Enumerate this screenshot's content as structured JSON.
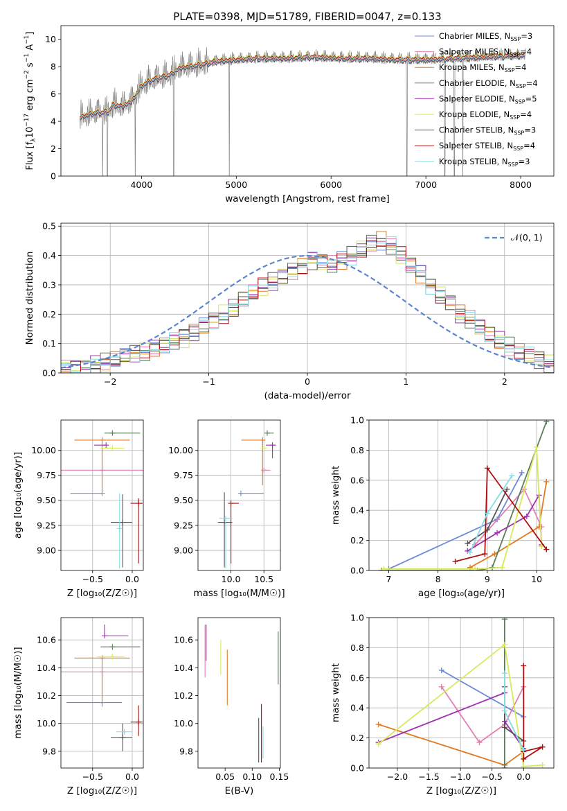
{
  "figure_title": "PLATE=0398, MJD=51789, FIBERID=0047, z=0.133",
  "colors": {
    "chabrier_miles": "#6a89d9",
    "salpeter_miles": "#e47fb4",
    "kroupa_miles": "#e07b25",
    "chabrier_elodie": "#5a7d5a",
    "salpeter_elodie": "#a033b0",
    "kroupa_elodie": "#d8e85a",
    "chabrier_stelib": "#555555",
    "salpeter_stelib": "#b00d0d",
    "kroupa_stelib": "#86dbe6",
    "data_spectrum": "#808080",
    "normal_curve": "#5b86cc"
  },
  "chart_data": [
    {
      "id": "spectrum",
      "type": "line",
      "xlabel": "wavelength [Angstrom, rest frame]",
      "ylabel_parts": [
        "Flux [f",
        "λ",
        "10",
        "−17",
        " erg cm",
        "−2",
        " s",
        "−1",
        " A",
        "−1",
        "]"
      ],
      "xlim": [
        3150,
        8350
      ],
      "ylim": [
        0,
        11
      ],
      "xticks": [
        4000,
        5000,
        6000,
        7000,
        8000
      ],
      "yticks": [
        0,
        2,
        4,
        6,
        8,
        10
      ],
      "grid": false,
      "legend_position": "right",
      "legend": [
        {
          "label": "Chabrier MILES, N",
          "sub": "SSP",
          "val": "=3",
          "color_key": "chabrier_miles"
        },
        {
          "label": "Salpeter MILES, N",
          "sub": "SSP",
          "val": "=4",
          "color_key": "salpeter_miles"
        },
        {
          "label": "Kroupa MILES, N",
          "sub": "SSP",
          "val": "=4",
          "color_key": "kroupa_miles"
        },
        {
          "label": "Chabrier ELODIE, N",
          "sub": "SSP",
          "val": "=4",
          "color_key": "chabrier_elodie"
        },
        {
          "label": "Salpeter ELODIE, N",
          "sub": "SSP",
          "val": "=5",
          "color_key": "salpeter_elodie"
        },
        {
          "label": "Kroupa ELODIE, N",
          "sub": "SSP",
          "val": "=4",
          "color_key": "kroupa_elodie"
        },
        {
          "label": "Chabrier STELIB, N",
          "sub": "SSP",
          "val": "=3",
          "color_key": "chabrier_stelib"
        },
        {
          "label": "Salpeter STELIB, N",
          "sub": "SSP",
          "val": "=4",
          "color_key": "salpeter_stelib"
        },
        {
          "label": "Kroupa STELIB, N",
          "sub": "SSP",
          "val": "=3",
          "color_key": "kroupa_stelib"
        }
      ],
      "continuum_x": [
        3350,
        3500,
        3650,
        3700,
        3800,
        3900,
        4000,
        4100,
        4200,
        4300,
        4400,
        4600,
        4800,
        5000,
        5200,
        5500,
        5800,
        6100,
        6400,
        6700,
        7000,
        7300,
        7600,
        7900,
        8050
      ],
      "continuum_y": [
        4.3,
        4.6,
        4.7,
        5.2,
        5.1,
        5.5,
        6.6,
        7.0,
        7.2,
        7.4,
        7.9,
        8.1,
        8.4,
        8.5,
        8.6,
        8.6,
        8.7,
        8.6,
        8.6,
        8.5,
        8.5,
        8.6,
        8.7,
        8.8,
        8.8
      ],
      "data_dips_x": [
        3590,
        3640,
        3935,
        4340,
        4925,
        6800,
        7200,
        7300,
        7390
      ],
      "model_offsets": [
        0.0,
        0.05,
        -0.05,
        0.1,
        -0.1,
        0.15,
        -0.12,
        0.08,
        0.0
      ]
    },
    {
      "id": "residuals",
      "type": "line",
      "xlabel": "(data-model)/error",
      "ylabel": "Normed distribution",
      "xlim": [
        -2.5,
        2.5
      ],
      "ylim": [
        0,
        0.51
      ],
      "xticks": [
        -2,
        -1,
        0,
        1,
        2
      ],
      "yticks": [
        0.0,
        0.1,
        0.2,
        0.3,
        0.4,
        0.5
      ],
      "grid": true,
      "legend_position": "top-right",
      "legend_label": "𝒩(0, 1)",
      "bin_width": 0.1,
      "bin_start": -2.5,
      "base_hist": [
        0.015,
        0.018,
        0.022,
        0.028,
        0.035,
        0.045,
        0.055,
        0.062,
        0.072,
        0.085,
        0.098,
        0.11,
        0.12,
        0.14,
        0.16,
        0.18,
        0.2,
        0.22,
        0.25,
        0.27,
        0.29,
        0.31,
        0.33,
        0.35,
        0.37,
        0.385,
        0.38,
        0.37,
        0.38,
        0.4,
        0.42,
        0.44,
        0.45,
        0.43,
        0.4,
        0.37,
        0.34,
        0.3,
        0.27,
        0.24,
        0.2,
        0.18,
        0.15,
        0.13,
        0.11,
        0.09,
        0.075,
        0.06,
        0.045,
        0.035
      ]
    },
    {
      "id": "age_vs_Z",
      "type": "scatter",
      "xlabel": "Z [log₁₀(Z/Z☉)]",
      "ylabel": "age  [log₁₀(age/yr)]",
      "xlim": [
        -0.9,
        0.14
      ],
      "ylim": [
        8.8,
        10.3
      ],
      "xticks": [
        -0.5,
        0.0
      ],
      "yticks": [
        9.0,
        9.25,
        9.5,
        9.75,
        10.0
      ],
      "grid": true,
      "points": [
        {
          "x": -0.38,
          "xerr": [
            0.4,
            0.0
          ],
          "y": 9.57,
          "yerr": [
            0.0,
            0.0
          ],
          "color_key": "chabrier_miles"
        },
        {
          "x": -0.38,
          "xerr": [
            0.52,
            0.52
          ],
          "y": 9.8,
          "yerr": [
            0.25,
            0.28
          ],
          "color_key": "salpeter_miles"
        },
        {
          "x": -0.38,
          "xerr": [
            0.35,
            0.35
          ],
          "y": 10.1,
          "yerr": [
            0.53,
            0.0
          ],
          "color_key": "kroupa_miles"
        },
        {
          "x": -0.25,
          "xerr": [
            0.1,
            0.35
          ],
          "y": 10.17,
          "yerr": [
            0.0,
            0.0
          ],
          "color_key": "chabrier_elodie"
        },
        {
          "x": -0.33,
          "xerr": [
            0.15,
            0.0
          ],
          "y": 10.05,
          "yerr": [
            0.0,
            0.0
          ],
          "color_key": "salpeter_elodie"
        },
        {
          "x": -0.25,
          "xerr": [
            0.15,
            0.15
          ],
          "y": 10.02,
          "yerr": [
            0.0,
            0.0
          ],
          "color_key": "kroupa_elodie"
        },
        {
          "x": -0.12,
          "xerr": [
            0.15,
            0.12
          ],
          "y": 9.28,
          "yerr": [
            0.45,
            0.28
          ],
          "color_key": "chabrier_stelib"
        },
        {
          "x": 0.08,
          "xerr": [
            0.1,
            0.05
          ],
          "y": 9.47,
          "yerr": [
            0.6,
            0.05
          ],
          "color_key": "salpeter_stelib"
        },
        {
          "x": -0.16,
          "xerr": [
            0.0,
            0.0
          ],
          "y": 9.22,
          "yerr": [
            0.4,
            0.35
          ],
          "color_key": "kroupa_stelib"
        }
      ]
    },
    {
      "id": "age_vs_mass",
      "type": "scatter",
      "xlabel": "mass [log₁₀(M/M☉)]",
      "ylabel": "",
      "xlim": [
        9.5,
        10.75
      ],
      "ylim": [
        8.8,
        10.3
      ],
      "xticks": [
        10.0,
        10.5
      ],
      "yticks": [
        9.0,
        9.25,
        9.5,
        9.75,
        10.0
      ],
      "grid": true,
      "points": [
        {
          "x": 10.15,
          "xerr": [
            0.0,
            0.35
          ],
          "y": 9.57,
          "yerr": [
            0.0,
            0.0
          ],
          "color_key": "chabrier_miles"
        },
        {
          "x": 10.5,
          "xerr": [
            0.0,
            0.1
          ],
          "y": 9.8,
          "yerr": [
            0.0,
            0.0
          ],
          "color_key": "salpeter_miles"
        },
        {
          "x": 10.48,
          "xerr": [
            0.32,
            0.0
          ],
          "y": 10.1,
          "yerr": [
            0.45,
            0.0
          ],
          "color_key": "kroupa_miles"
        },
        {
          "x": 10.55,
          "xerr": [
            0.0,
            0.1
          ],
          "y": 10.17,
          "yerr": [
            0.0,
            0.0
          ],
          "color_key": "chabrier_elodie"
        },
        {
          "x": 10.63,
          "xerr": [
            0.1,
            0.05
          ],
          "y": 10.05,
          "yerr": [
            0.13,
            0.0
          ],
          "color_key": "salpeter_elodie"
        },
        {
          "x": 10.5,
          "xerr": [
            0.0,
            0.0
          ],
          "y": 10.02,
          "yerr": [
            0.0,
            0.0
          ],
          "color_key": "kroupa_elodie"
        },
        {
          "x": 9.9,
          "xerr": [
            0.1,
            0.12
          ],
          "y": 9.28,
          "yerr": [
            0.45,
            0.3
          ],
          "color_key": "chabrier_stelib"
        },
        {
          "x": 10.0,
          "xerr": [
            0.0,
            0.12
          ],
          "y": 9.47,
          "yerr": [
            0.6,
            0.0
          ],
          "color_key": "salpeter_stelib"
        },
        {
          "x": 9.92,
          "xerr": [
            0.1,
            0.1
          ],
          "y": 9.32,
          "yerr": [
            0.5,
            0.0
          ],
          "color_key": "kroupa_stelib"
        }
      ]
    },
    {
      "id": "mass_weight_vs_age",
      "type": "line",
      "xlabel": "age  [log₁₀(age/yr)]",
      "ylabel": "mass weight",
      "xlim": [
        6.6,
        10.35
      ],
      "ylim": [
        0,
        1.0
      ],
      "xticks": [
        7,
        8,
        9,
        10
      ],
      "yticks": [
        0.0,
        0.2,
        0.4,
        0.6,
        0.8,
        1.0
      ],
      "grid": true,
      "series": [
        {
          "color_key": "chabrier_miles",
          "x": [
            7.0,
            9.2,
            9.7
          ],
          "y": [
            0.01,
            0.34,
            0.65
          ]
        },
        {
          "color_key": "salpeter_miles",
          "x": [
            8.75,
            9.75,
            10.1
          ],
          "y": [
            0.17,
            0.54,
            0.29
          ]
        },
        {
          "color_key": "kroupa_miles",
          "x": [
            8.65,
            9.15,
            10.05,
            10.2
          ],
          "y": [
            0.02,
            0.11,
            0.29,
            0.59
          ]
        },
        {
          "color_key": "chabrier_elodie",
          "x": [
            6.85,
            8.8,
            9.1,
            10.2
          ],
          "y": [
            0.0,
            0.0,
            0.02,
            0.99
          ]
        },
        {
          "color_key": "salpeter_elodie",
          "x": [
            8.6,
            9.2,
            9.8,
            10.05,
            10.1
          ],
          "y": [
            0.13,
            0.25,
            0.36,
            0.5,
            0.17
          ]
        },
        {
          "color_key": "kroupa_elodie",
          "x": [
            6.9,
            8.75,
            9.3,
            10.0,
            10.1
          ],
          "y": [
            0.01,
            0.01,
            0.02,
            0.82,
            0.16
          ]
        },
        {
          "color_key": "chabrier_stelib",
          "x": [
            8.6,
            9.0,
            9.4
          ],
          "y": [
            0.18,
            0.27,
            0.54
          ]
        },
        {
          "color_key": "salpeter_stelib",
          "x": [
            8.35,
            8.95,
            9.0,
            10.2
          ],
          "y": [
            0.06,
            0.11,
            0.68,
            0.14
          ]
        },
        {
          "color_key": "kroupa_stelib",
          "x": [
            8.65,
            9.0,
            9.5
          ],
          "y": [
            0.12,
            0.38,
            0.63
          ]
        }
      ]
    },
    {
      "id": "mass_vs_Z",
      "type": "scatter",
      "xlabel": "Z [log₁₀(Z/Z☉)]",
      "ylabel": "mass [log₁₀(M/M☉)]",
      "xlim": [
        -0.9,
        0.14
      ],
      "ylim": [
        9.68,
        10.76
      ],
      "xticks": [
        -0.5,
        0.0
      ],
      "yticks": [
        9.8,
        10.0,
        10.2,
        10.4,
        10.6
      ],
      "grid": true,
      "points": [
        {
          "x": -0.38,
          "xerr": [
            0.45,
            0.25
          ],
          "y": 10.15,
          "yerr": [
            0.0,
            0.0
          ],
          "color_key": "chabrier_miles"
        },
        {
          "x": -0.38,
          "xerr": [
            0.52,
            0.52
          ],
          "y": 10.37,
          "yerr": [
            0.23,
            0.0
          ],
          "color_key": "salpeter_miles"
        },
        {
          "x": -0.38,
          "xerr": [
            0.35,
            0.35
          ],
          "y": 10.47,
          "yerr": [
            0.35,
            0.0
          ],
          "color_key": "kroupa_miles"
        },
        {
          "x": -0.25,
          "xerr": [
            0.15,
            0.35
          ],
          "y": 10.55,
          "yerr": [
            0.0,
            0.0
          ],
          "color_key": "chabrier_elodie"
        },
        {
          "x": -0.35,
          "xerr": [
            0.0,
            0.3
          ],
          "y": 10.63,
          "yerr": [
            0.0,
            0.08
          ],
          "color_key": "salpeter_elodie"
        },
        {
          "x": -0.25,
          "xerr": [
            0.2,
            0.15
          ],
          "y": 10.48,
          "yerr": [
            0.0,
            0.0
          ],
          "color_key": "kroupa_elodie"
        },
        {
          "x": -0.12,
          "xerr": [
            0.15,
            0.12
          ],
          "y": 9.9,
          "yerr": [
            0.1,
            0.1
          ],
          "color_key": "chabrier_stelib"
        },
        {
          "x": 0.08,
          "xerr": [
            0.1,
            0.05
          ],
          "y": 10.01,
          "yerr": [
            0.1,
            0.12
          ],
          "color_key": "salpeter_stelib"
        },
        {
          "x": -0.1,
          "xerr": [
            0.1,
            0.1
          ],
          "y": 9.94,
          "yerr": [
            0.0,
            0.0
          ],
          "color_key": "kroupa_stelib"
        }
      ]
    },
    {
      "id": "mass_vs_ebv",
      "type": "scatter",
      "xlabel": "E(B-V)",
      "ylabel": "",
      "xlim": [
        0.0,
        0.152
      ],
      "ylim": [
        9.68,
        10.76
      ],
      "xticks": [
        0.05,
        0.1,
        0.15
      ],
      "yticks": [
        9.8,
        10.0,
        10.2,
        10.4,
        10.6
      ],
      "grid": false,
      "vlines": [
        {
          "x": 0.013,
          "y0": 10.33,
          "y1": 10.71,
          "color_key": "salpeter_miles"
        },
        {
          "x": 0.015,
          "y0": 10.45,
          "y1": 10.71,
          "color_key": "salpeter_elodie"
        },
        {
          "x": 0.042,
          "y0": 10.35,
          "y1": 10.6,
          "color_key": "kroupa_elodie"
        },
        {
          "x": 0.054,
          "y0": 10.13,
          "y1": 10.53,
          "color_key": "kroupa_miles"
        },
        {
          "x": 0.112,
          "y0": 9.72,
          "y1": 10.04,
          "color_key": "chabrier_stelib"
        },
        {
          "x": 0.117,
          "y0": 9.72,
          "y1": 10.14,
          "color_key": "salpeter_stelib"
        },
        {
          "x": 0.12,
          "y0": 9.75,
          "y1": 9.98,
          "color_key": "kroupa_stelib"
        },
        {
          "x": 0.148,
          "y0": 10.28,
          "y1": 10.66,
          "color_key": "chabrier_elodie"
        }
      ]
    },
    {
      "id": "mass_weight_vs_Z",
      "type": "line",
      "xlabel": "Z [log₁₀(Z/Z☉)]",
      "ylabel": "mass weight",
      "xlim": [
        -2.45,
        0.48
      ],
      "ylim": [
        0,
        1.0
      ],
      "xticks": [
        -2.0,
        -1.5,
        -1.0,
        -0.5,
        0.0
      ],
      "yticks": [
        0.0,
        0.2,
        0.4,
        0.6,
        0.8,
        1.0
      ],
      "grid": true,
      "series": [
        {
          "color_key": "chabrier_miles",
          "x": [
            -1.3,
            0.0
          ],
          "y": [
            0.65,
            0.34
          ]
        },
        {
          "color_key": "salpeter_miles",
          "x": [
            -1.3,
            -0.7,
            -0.3,
            0.0
          ],
          "y": [
            0.54,
            0.17,
            0.29,
            0.54
          ]
        },
        {
          "color_key": "kroupa_miles",
          "x": [
            -2.3,
            -0.3,
            0.0
          ],
          "y": [
            0.29,
            0.02,
            0.11
          ]
        },
        {
          "color_key": "chabrier_elodie",
          "x": [
            -0.3,
            -0.3,
            -0.3
          ],
          "y": [
            0.0,
            0.99,
            0.02
          ]
        },
        {
          "color_key": "salpeter_elodie",
          "x": [
            -2.3,
            -0.3,
            -0.3,
            0.0
          ],
          "y": [
            0.17,
            0.5,
            0.31,
            0.13
          ]
        },
        {
          "color_key": "kroupa_elodie",
          "x": [
            -2.3,
            -0.3,
            0.0,
            0.3
          ],
          "y": [
            0.16,
            0.82,
            0.01,
            0.02
          ]
        },
        {
          "color_key": "chabrier_stelib",
          "x": [
            -0.3,
            -0.3,
            0.0
          ],
          "y": [
            0.54,
            0.27,
            0.18
          ]
        },
        {
          "color_key": "salpeter_stelib",
          "x": [
            0.0,
            0.0,
            0.3,
            0.0
          ],
          "y": [
            0.68,
            0.06,
            0.14,
            0.11
          ]
        },
        {
          "color_key": "kroupa_stelib",
          "x": [
            -0.3,
            -0.3,
            0.0
          ],
          "y": [
            0.63,
            0.38,
            0.12
          ]
        }
      ]
    }
  ]
}
